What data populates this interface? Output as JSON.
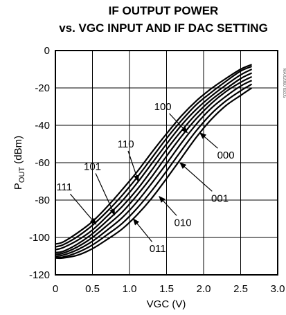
{
  "chart_data": {
    "type": "line",
    "title_line1": "IF OUTPUT POWER",
    "title_line2": "vs. VGC  INPUT AND IF DAC SETTING",
    "xlabel": "VGC (V)",
    "ylabel_main": "P",
    "ylabel_sub": "OUT",
    "ylabel_unit": " (dBm)",
    "watermark": "MAX2060 toc05",
    "xlim": [
      0,
      3.0
    ],
    "ylim": [
      -120,
      0
    ],
    "xticks": [
      0,
      0.5,
      1.0,
      1.5,
      2.0,
      2.5,
      3.0
    ],
    "xtick_labels": [
      "0",
      "0.5",
      "1.0",
      "1.5",
      "2.0",
      "2.5",
      "3.0"
    ],
    "yticks": [
      0,
      -20,
      -40,
      -60,
      -80,
      -100,
      -120
    ],
    "ytick_labels": [
      "0",
      "-20",
      "-40",
      "-60",
      "-80",
      "-100",
      "-120"
    ],
    "grid": true,
    "colors": {
      "line": "#000000",
      "grid": "#000000",
      "background": "#ffffff"
    },
    "series": [
      {
        "name": "000",
        "x": [
          0,
          0.1,
          0.3,
          0.5,
          0.7,
          0.9,
          1.1,
          1.3,
          1.5,
          1.7,
          1.9,
          2.1,
          2.3,
          2.5,
          2.65
        ],
        "y": [
          -111,
          -111,
          -109.5,
          -106,
          -101,
          -95.5,
          -88,
          -79,
          -68.5,
          -57.5,
          -46.5,
          -37,
          -29.5,
          -24,
          -20
        ]
      },
      {
        "name": "001",
        "x": [
          0,
          0.1,
          0.3,
          0.5,
          0.7,
          0.9,
          1.1,
          1.3,
          1.5,
          1.7,
          1.9,
          2.1,
          2.3,
          2.5,
          2.65
        ],
        "y": [
          -110.5,
          -110.5,
          -108,
          -104,
          -98.5,
          -92.5,
          -84.5,
          -75,
          -64.5,
          -53.5,
          -43,
          -34,
          -27,
          -21.5,
          -18
        ]
      },
      {
        "name": "010",
        "x": [
          0,
          0.1,
          0.3,
          0.5,
          0.7,
          0.9,
          1.1,
          1.3,
          1.5,
          1.7,
          1.9,
          2.1,
          2.3,
          2.5,
          2.65
        ],
        "y": [
          -110,
          -109.5,
          -106.5,
          -102,
          -96,
          -89.5,
          -81,
          -71,
          -60.5,
          -49.5,
          -39.5,
          -31,
          -24.5,
          -19,
          -16
        ]
      },
      {
        "name": "011",
        "x": [
          0,
          0.1,
          0.3,
          0.5,
          0.7,
          0.9,
          1.1,
          1.3,
          1.5,
          1.7,
          1.9,
          2.1,
          2.3,
          2.5,
          2.65
        ],
        "y": [
          -109,
          -108.5,
          -105,
          -100,
          -93.5,
          -86.5,
          -77.5,
          -67.5,
          -56.5,
          -46,
          -36.5,
          -28.5,
          -22,
          -17,
          -14
        ]
      },
      {
        "name": "100",
        "x": [
          0,
          0.1,
          0.3,
          0.5,
          0.7,
          0.9,
          1.1,
          1.3,
          1.5,
          1.7,
          1.9,
          2.1,
          2.3,
          2.5,
          2.65
        ],
        "y": [
          -108,
          -107.5,
          -103.5,
          -98,
          -91,
          -83.5,
          -74.5,
          -64,
          -53,
          -43,
          -34,
          -26.5,
          -20.5,
          -15,
          -12
        ]
      },
      {
        "name": "101",
        "x": [
          0,
          0.1,
          0.3,
          0.5,
          0.7,
          0.9,
          1.1,
          1.3,
          1.5,
          1.7,
          1.9,
          2.1,
          2.3,
          2.5,
          2.65
        ],
        "y": [
          -106.5,
          -105.5,
          -101.5,
          -96,
          -88.5,
          -80.5,
          -71,
          -60.5,
          -50,
          -40,
          -31.5,
          -24.5,
          -18.5,
          -13,
          -10
        ]
      },
      {
        "name": "110",
        "x": [
          0,
          0.1,
          0.3,
          0.5,
          0.7,
          0.9,
          1.1,
          1.3,
          1.5,
          1.7,
          1.9,
          2.1,
          2.3,
          2.5,
          2.65
        ],
        "y": [
          -105,
          -104,
          -99.5,
          -93.5,
          -86,
          -77.5,
          -68,
          -57.5,
          -47,
          -37.5,
          -29,
          -22.5,
          -16.5,
          -11,
          -8.5
        ]
      },
      {
        "name": "111",
        "x": [
          0,
          0.1,
          0.3,
          0.5,
          0.7,
          0.9,
          1.1,
          1.3,
          1.5,
          1.7,
          1.9,
          2.1,
          2.3,
          2.5,
          2.65
        ],
        "y": [
          -103.5,
          -102.5,
          -97.5,
          -91.5,
          -83.5,
          -74.5,
          -65,
          -54.5,
          -44.5,
          -35,
          -27,
          -20.5,
          -15,
          -10,
          -7.5
        ]
      }
    ],
    "annotations": [
      {
        "text": "100",
        "label_x": 1.45,
        "label_y": -30,
        "target_x": 1.78,
        "target_y": -44
      },
      {
        "text": "000",
        "label_x": 2.3,
        "label_y": -56,
        "target_x": 1.95,
        "target_y": -44
      },
      {
        "text": "110",
        "label_x": 0.95,
        "label_y": -50,
        "target_x": 1.12,
        "target_y": -70
      },
      {
        "text": "001",
        "label_x": 2.22,
        "label_y": -79,
        "target_x": 1.68,
        "target_y": -60
      },
      {
        "text": "101",
        "label_x": 0.5,
        "label_y": -62,
        "target_x": 0.8,
        "target_y": -88
      },
      {
        "text": "010",
        "label_x": 1.72,
        "label_y": -92,
        "target_x": 1.4,
        "target_y": -78
      },
      {
        "text": "111",
        "label_x": 0.12,
        "label_y": -73,
        "target_x": 0.55,
        "target_y": -93
      },
      {
        "text": "011",
        "label_x": 1.38,
        "label_y": -106,
        "target_x": 1.05,
        "target_y": -90
      }
    ]
  }
}
